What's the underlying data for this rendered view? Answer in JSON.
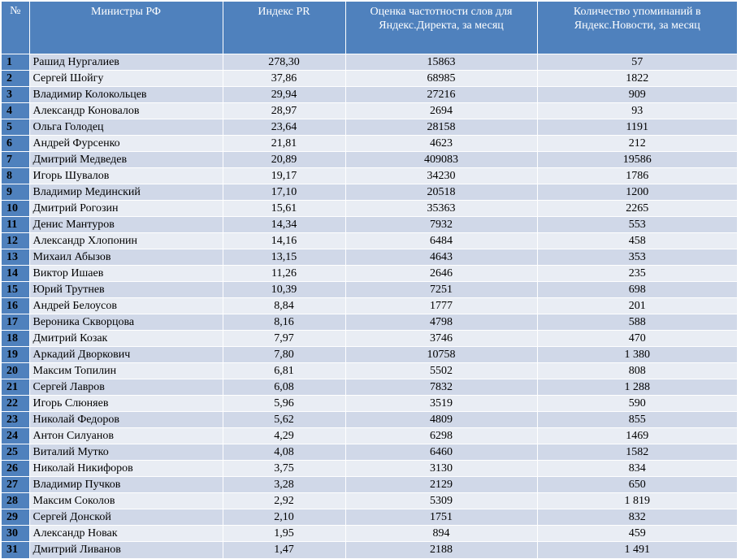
{
  "headers": {
    "num": "№",
    "minister": "Министры РФ",
    "pr_index": "Индекс PR",
    "yandex_direct": "Оценка частотности слов для Яндекс.Директа, за месяц",
    "yandex_news": "Количество упоминаний в Яндекс.Новости, за месяц"
  },
  "colors": {
    "header_bg": "#4f81bd",
    "row_odd": "#d0d8e8",
    "row_even": "#e9edf4"
  },
  "rows": [
    {
      "num": "1",
      "name": "Рашид Нургалиев",
      "pr": "278,30",
      "direct": "15863",
      "news": "57"
    },
    {
      "num": "2",
      "name": "Сергей Шойгу",
      "pr": "37,86",
      "direct": "68985",
      "news": "1822"
    },
    {
      "num": "3",
      "name": "Владимир Колокольцев",
      "pr": "29,94",
      "direct": "27216",
      "news": "909"
    },
    {
      "num": "4",
      "name": "Александр Коновалов",
      "pr": "28,97",
      "direct": "2694",
      "news": "93"
    },
    {
      "num": "5",
      "name": "Ольга Голодец",
      "pr": "23,64",
      "direct": "28158",
      "news": "1191"
    },
    {
      "num": "6",
      "name": "Андрей Фурсенко",
      "pr": "21,81",
      "direct": "4623",
      "news": "212"
    },
    {
      "num": "7",
      "name": "Дмитрий Медведев",
      "pr": "20,89",
      "direct": "409083",
      "news": "19586"
    },
    {
      "num": "8",
      "name": "Игорь Шувалов",
      "pr": "19,17",
      "direct": "34230",
      "news": "1786"
    },
    {
      "num": "9",
      "name": "Владимир Мединский",
      "pr": "17,10",
      "direct": "20518",
      "news": "1200"
    },
    {
      "num": "10",
      "name": "Дмитрий Рогозин",
      "pr": "15,61",
      "direct": "35363",
      "news": "2265"
    },
    {
      "num": "11",
      "name": "Денис Мантуров",
      "pr": "14,34",
      "direct": "7932",
      "news": "553"
    },
    {
      "num": "12",
      "name": "Александр Хлопонин",
      "pr": "14,16",
      "direct": "6484",
      "news": "458"
    },
    {
      "num": "13",
      "name": "Михаил Абызов",
      "pr": "13,15",
      "direct": "4643",
      "news": "353"
    },
    {
      "num": "14",
      "name": "Виктор Ишаев",
      "pr": "11,26",
      "direct": "2646",
      "news": "235"
    },
    {
      "num": "15",
      "name": "Юрий Трутнев",
      "pr": "10,39",
      "direct": "7251",
      "news": "698"
    },
    {
      "num": "16",
      "name": "Андрей Белоусов",
      "pr": "8,84",
      "direct": "1777",
      "news": "201"
    },
    {
      "num": "17",
      "name": "Вероника Скворцова",
      "pr": "8,16",
      "direct": "4798",
      "news": "588"
    },
    {
      "num": "18",
      "name": "Дмитрий Козак",
      "pr": "7,97",
      "direct": "3746",
      "news": "470"
    },
    {
      "num": "19",
      "name": "Аркадий Дворкович",
      "pr": "7,80",
      "direct": "10758",
      "news": "1 380"
    },
    {
      "num": "20",
      "name": "Максим Топилин",
      "pr": "6,81",
      "direct": "5502",
      "news": "808"
    },
    {
      "num": "21",
      "name": "Сергей Лавров",
      "pr": "6,08",
      "direct": "7832",
      "news": "1 288"
    },
    {
      "num": "22",
      "name": "Игорь Слюняев",
      "pr": "5,96",
      "direct": "3519",
      "news": "590"
    },
    {
      "num": "23",
      "name": "Николай Федоров",
      "pr": "5,62",
      "direct": "4809",
      "news": "855"
    },
    {
      "num": "24",
      "name": "Антон Силуанов",
      "pr": "4,29",
      "direct": "6298",
      "news": "1469"
    },
    {
      "num": "25",
      "name": "Виталий Мутко",
      "pr": "4,08",
      "direct": "6460",
      "news": "1582"
    },
    {
      "num": "26",
      "name": "Николай Никифоров",
      "pr": "3,75",
      "direct": "3130",
      "news": "834"
    },
    {
      "num": "27",
      "name": "Владимир Пучков",
      "pr": "3,28",
      "direct": "2129",
      "news": "650"
    },
    {
      "num": "28",
      "name": "Максим Соколов",
      "pr": "2,92",
      "direct": "5309",
      "news": "1 819"
    },
    {
      "num": "29",
      "name": "Сергей Донской",
      "pr": "2,10",
      "direct": "1751",
      "news": "832"
    },
    {
      "num": "30",
      "name": "Александр Новак",
      "pr": "1,95",
      "direct": "894",
      "news": "459"
    },
    {
      "num": "31",
      "name": "Дмитрий Ливанов",
      "pr": "1,47",
      "direct": "2188",
      "news": "1 491"
    }
  ]
}
